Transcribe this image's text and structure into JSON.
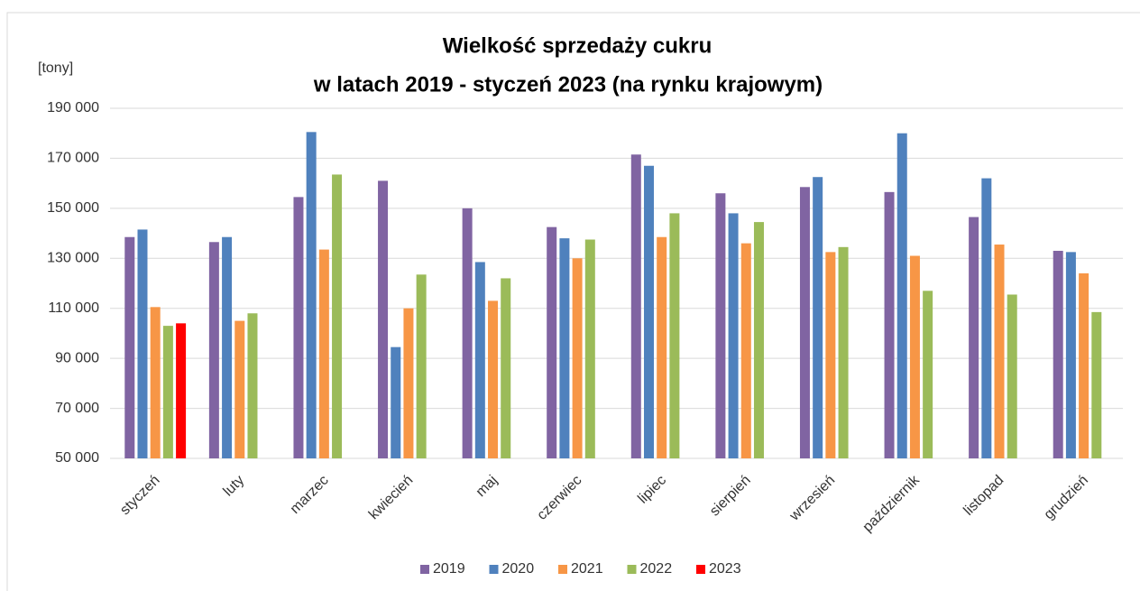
{
  "chart_data": {
    "type": "bar",
    "title": [
      "Wielkość sprzedaży cukru",
      "w latach 2019 - styczeń 2023 (na rynku krajowym)"
    ],
    "ylabel": "[tony]",
    "categories": [
      "styczeń",
      "luty",
      "marzec",
      "kwiecień",
      "maj",
      "czerwiec",
      "lipiec",
      "sierpień",
      "wrzesień",
      "październik",
      "listopad",
      "grudzień"
    ],
    "series": [
      {
        "name": "2019",
        "color": "#8064a2",
        "values": [
          138500,
          136500,
          154500,
          161000,
          150000,
          142500,
          171500,
          156000,
          158500,
          156500,
          146500,
          133000
        ]
      },
      {
        "name": "2020",
        "color": "#4f81bd",
        "values": [
          141500,
          138500,
          180500,
          94500,
          128500,
          138000,
          167000,
          148000,
          162500,
          180000,
          162000,
          132500
        ]
      },
      {
        "name": "2021",
        "color": "#f79646",
        "values": [
          110500,
          105000,
          133500,
          110000,
          113000,
          130000,
          138500,
          136000,
          132500,
          131000,
          135500,
          124000
        ]
      },
      {
        "name": "2022",
        "color": "#9bbb59",
        "values": [
          103000,
          108000,
          163500,
          123500,
          122000,
          137500,
          148000,
          144500,
          134500,
          117000,
          115500,
          108500
        ]
      },
      {
        "name": "2023",
        "color": "#ff0000",
        "values": [
          104000,
          null,
          null,
          null,
          null,
          null,
          null,
          null,
          null,
          null,
          null,
          null
        ]
      }
    ],
    "ylim": [
      50000,
      190000
    ],
    "yticks": [
      {
        "value": 50000,
        "label": "50 000"
      },
      {
        "value": 70000,
        "label": "70 000"
      },
      {
        "value": 90000,
        "label": "90 000"
      },
      {
        "value": 110000,
        "label": "110 000"
      },
      {
        "value": 130000,
        "label": "130 000"
      },
      {
        "value": 150000,
        "label": "150 000"
      },
      {
        "value": 170000,
        "label": "170 000"
      },
      {
        "value": 190000,
        "label": "190 000"
      }
    ],
    "grid": true,
    "legend": "bottom"
  }
}
